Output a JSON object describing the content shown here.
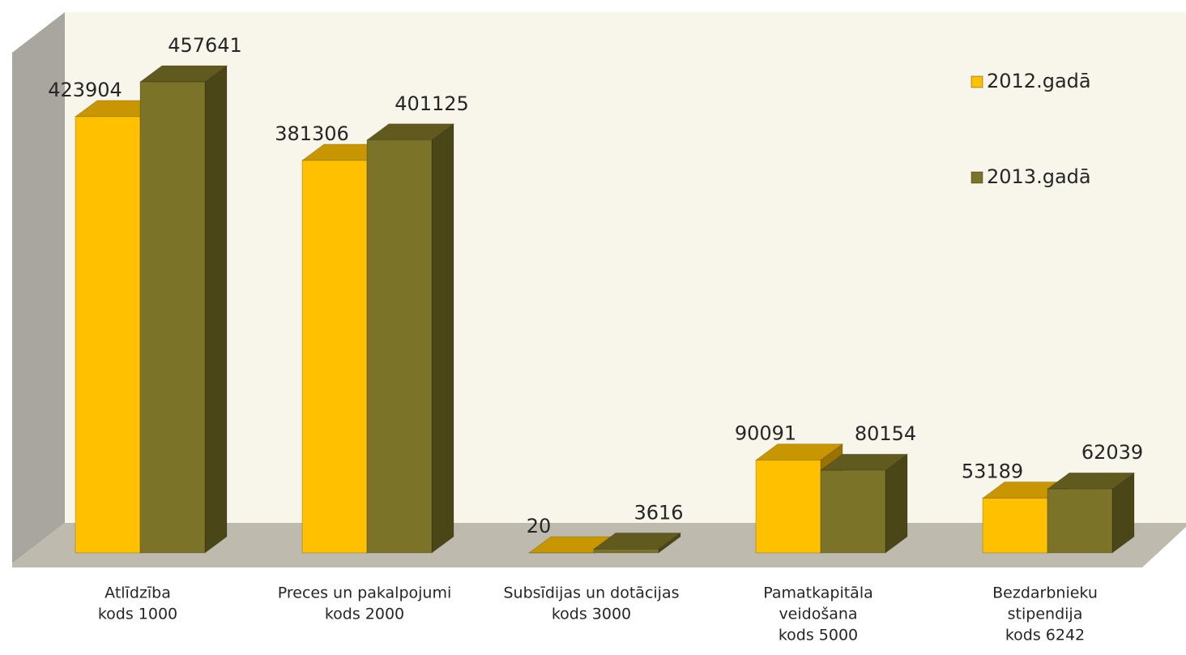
{
  "chart_data": {
    "type": "bar3d",
    "categories": [
      [
        "Atlīdzība",
        "kods 1000"
      ],
      [
        "Preces un pakalpojumi",
        "kods 2000"
      ],
      [
        "Subsīdijas un dotācijas",
        "kods 3000"
      ],
      [
        "Pamatkapitāla",
        "veidošana",
        "kods 5000"
      ],
      [
        "Bezdarbnieku",
        "stipendija",
        "kods 6242"
      ]
    ],
    "series": [
      {
        "name": "2012.gadā",
        "color": "#FFC000",
        "values": [
          423904,
          381306,
          20,
          90091,
          53189
        ]
      },
      {
        "name": "2013.gadā",
        "color": "#7B7428",
        "values": [
          457641,
          401125,
          3616,
          80154,
          62039
        ]
      }
    ]
  }
}
